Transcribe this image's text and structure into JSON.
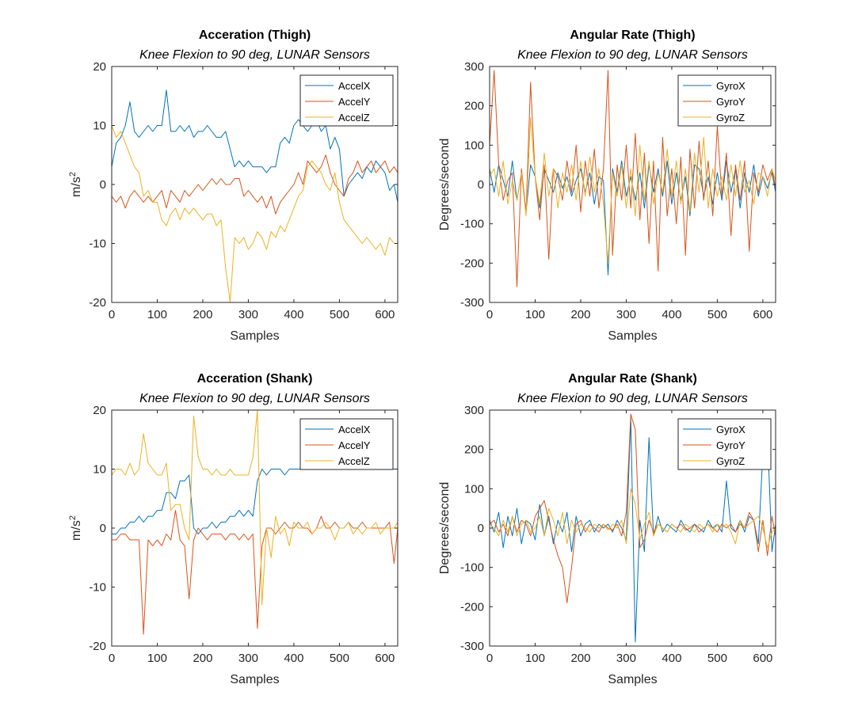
{
  "chart_data": [
    {
      "type": "line",
      "title": "Acceration (Thigh)",
      "subtitle": "Knee Flexion to 90 deg, LUNAR Sensors",
      "xlabel": "Samples",
      "ylabel_base": "m/s",
      "ylabel_sup": "2",
      "xlim": [
        0,
        628
      ],
      "ylim": [
        -20,
        20
      ],
      "xticks": [
        0,
        100,
        200,
        300,
        400,
        500,
        600
      ],
      "yticks": [
        -20,
        -10,
        0,
        10,
        20
      ],
      "legend_position": "top-right",
      "x": [
        0,
        10,
        20,
        30,
        40,
        50,
        60,
        70,
        80,
        90,
        100,
        110,
        120,
        130,
        140,
        150,
        160,
        170,
        180,
        190,
        200,
        210,
        220,
        230,
        240,
        250,
        260,
        270,
        280,
        290,
        300,
        310,
        320,
        330,
        340,
        350,
        360,
        370,
        380,
        390,
        400,
        410,
        420,
        430,
        440,
        450,
        460,
        470,
        480,
        490,
        500,
        510,
        520,
        530,
        540,
        550,
        560,
        570,
        580,
        590,
        600,
        610,
        620,
        628
      ],
      "series": [
        {
          "name": "AccelX",
          "color": "#0072BD",
          "values": [
            3,
            7,
            8,
            10,
            14,
            9,
            8,
            9,
            10,
            9,
            10,
            10,
            16,
            9,
            9,
            10,
            9,
            10,
            8,
            9,
            9,
            10,
            9,
            8,
            8,
            9,
            6,
            3,
            4,
            3,
            4,
            3,
            3,
            3,
            2,
            3,
            3,
            7,
            8,
            7,
            10,
            11,
            10,
            9,
            10,
            11,
            9,
            10,
            6,
            8,
            6,
            -2,
            0,
            1,
            2,
            1,
            3,
            2,
            4,
            3,
            2,
            -1,
            0,
            -3
          ]
        },
        {
          "name": "AccelY",
          "color": "#D95319",
          "values": [
            -2,
            -3,
            -2,
            -4,
            -2,
            -1,
            -2,
            -3,
            -2,
            -3,
            -2,
            -1,
            -4,
            -1,
            -2,
            -3,
            -1,
            -2,
            -1,
            0,
            -1,
            0,
            1,
            0,
            1,
            0,
            0,
            1,
            1,
            -2,
            -1,
            -2,
            -3,
            -2,
            -4,
            -2,
            -5,
            -3,
            -2,
            -1,
            0,
            2,
            0,
            4,
            3,
            2,
            3,
            5,
            2,
            0,
            -1,
            -2,
            1,
            2,
            4,
            2,
            3,
            4,
            2,
            3,
            4,
            2,
            3,
            2
          ]
        },
        {
          "name": "AccelZ",
          "color": "#EDB120",
          "values": [
            10,
            8,
            9,
            7,
            5,
            3,
            2,
            -2,
            -1,
            -3,
            -3,
            -6,
            -7,
            -5,
            -4,
            -6,
            -4,
            -5,
            -4,
            -5,
            -6,
            -5,
            -5,
            -7,
            -6,
            -14,
            -20,
            -9,
            -10,
            -9,
            -11,
            -10,
            -8,
            -9,
            -11,
            -8,
            -9,
            -7,
            -8,
            -6,
            -4,
            -2,
            -1,
            3,
            4,
            3,
            2,
            0,
            -1,
            2,
            -3,
            -6,
            -7,
            -8,
            -9,
            -10,
            -9,
            -10,
            -11,
            -10,
            -12,
            -9,
            -10,
            -10
          ]
        }
      ]
    },
    {
      "type": "line",
      "title": "Angular Rate (Thigh)",
      "subtitle": "Knee Flexion to 90 deg, LUNAR Sensors",
      "xlabel": "Samples",
      "ylabel_base": "Degrees/second",
      "ylabel_sup": "",
      "xlim": [
        0,
        628
      ],
      "ylim": [
        -300,
        300
      ],
      "xticks": [
        0,
        100,
        200,
        300,
        400,
        500,
        600
      ],
      "yticks": [
        -300,
        -200,
        -100,
        0,
        100,
        200,
        300
      ],
      "legend_position": "top-right",
      "x": [
        0,
        10,
        20,
        30,
        40,
        50,
        60,
        70,
        80,
        90,
        100,
        110,
        120,
        130,
        140,
        150,
        160,
        170,
        180,
        190,
        200,
        210,
        220,
        230,
        240,
        250,
        260,
        270,
        280,
        290,
        300,
        310,
        320,
        330,
        340,
        350,
        360,
        370,
        380,
        390,
        400,
        410,
        420,
        430,
        440,
        450,
        460,
        470,
        480,
        490,
        500,
        510,
        520,
        530,
        540,
        550,
        560,
        570,
        580,
        590,
        600,
        610,
        620,
        628
      ],
      "series": [
        {
          "name": "GyroX",
          "color": "#0072BD",
          "values": [
            40,
            -20,
            50,
            10,
            -30,
            60,
            -40,
            30,
            -70,
            50,
            20,
            -60,
            40,
            10,
            -20,
            30,
            -10,
            20,
            -30,
            10,
            40,
            -20,
            30,
            -50,
            20,
            10,
            -230,
            40,
            -20,
            60,
            -30,
            20,
            -40,
            30,
            -60,
            50,
            -20,
            40,
            -30,
            60,
            -50,
            30,
            -40,
            20,
            -80,
            50,
            40,
            -30,
            20,
            -50,
            30,
            -40,
            60,
            -20,
            40,
            -60,
            30,
            -20,
            50,
            -30,
            20,
            -10,
            30,
            -20
          ]
        },
        {
          "name": "GyroY",
          "color": "#D95319",
          "values": [
            100,
            290,
            50,
            -40,
            10,
            30,
            -260,
            40,
            -70,
            260,
            20,
            -90,
            50,
            -190,
            40,
            20,
            -40,
            60,
            -20,
            100,
            -70,
            60,
            -30,
            90,
            -60,
            40,
            290,
            -180,
            50,
            -40,
            100,
            -60,
            130,
            -90,
            80,
            -150,
            60,
            -220,
            120,
            -80,
            40,
            -100,
            70,
            -180,
            90,
            -60,
            110,
            -40,
            60,
            -80,
            150,
            -30,
            80,
            -130,
            50,
            -40,
            60,
            -170,
            30,
            -20,
            50,
            10,
            40,
            -10
          ]
        },
        {
          "name": "GyroZ",
          "color": "#EDB120",
          "values": [
            20,
            40,
            -30,
            60,
            -50,
            10,
            -40,
            30,
            -80,
            170,
            20,
            -50,
            80,
            -30,
            40,
            -60,
            30,
            -20,
            50,
            -40,
            60,
            -30,
            70,
            -20,
            40,
            -50,
            -200,
            30,
            -30,
            50,
            -60,
            40,
            -80,
            100,
            -40,
            60,
            -50,
            30,
            -20,
            90,
            -30,
            60,
            -50,
            40,
            -70,
            80,
            -20,
            120,
            -60,
            40,
            -30,
            20,
            -40,
            50,
            -30,
            60,
            -20,
            10,
            -50,
            30,
            20,
            -30,
            40,
            10
          ]
        }
      ]
    },
    {
      "type": "line",
      "title": "Acceration (Shank)",
      "subtitle": "Knee Flexion to 90 deg, LUNAR Sensors",
      "xlabel": "Samples",
      "ylabel_base": "m/s",
      "ylabel_sup": "2",
      "xlim": [
        0,
        628
      ],
      "ylim": [
        -20,
        20
      ],
      "xticks": [
        0,
        100,
        200,
        300,
        400,
        500,
        600
      ],
      "yticks": [
        -20,
        -10,
        0,
        10,
        20
      ],
      "legend_position": "top-right",
      "x": [
        0,
        10,
        20,
        30,
        40,
        50,
        60,
        70,
        80,
        90,
        100,
        110,
        120,
        130,
        140,
        150,
        160,
        170,
        180,
        190,
        200,
        210,
        220,
        230,
        240,
        250,
        260,
        270,
        280,
        290,
        300,
        310,
        320,
        330,
        340,
        350,
        360,
        370,
        380,
        390,
        400,
        410,
        420,
        430,
        440,
        450,
        460,
        470,
        480,
        490,
        500,
        510,
        520,
        530,
        540,
        550,
        560,
        570,
        580,
        590,
        600,
        610,
        620,
        628
      ],
      "series": [
        {
          "name": "AccelX",
          "color": "#0072BD",
          "values": [
            -1,
            -1,
            0,
            0,
            1,
            1,
            2,
            1,
            2,
            2,
            3,
            3,
            6,
            6,
            5,
            8,
            8,
            9,
            0,
            -1,
            0,
            0,
            1,
            0,
            1,
            1,
            2,
            2,
            3,
            2,
            3,
            2,
            8,
            10,
            9,
            10,
            10,
            10,
            9,
            10,
            10,
            10,
            10,
            10,
            10,
            10,
            10,
            10,
            10,
            10,
            10,
            10,
            10,
            10,
            10,
            10,
            10,
            10,
            10,
            10,
            10,
            10,
            10,
            10
          ]
        },
        {
          "name": "AccelY",
          "color": "#D95319",
          "values": [
            -2,
            -2,
            -1,
            -1,
            -2,
            -2,
            -2,
            -18,
            -2,
            -3,
            -2,
            -3,
            -1,
            -2,
            3,
            -2,
            -3,
            -12,
            -2,
            0,
            -1,
            -2,
            -1,
            -1,
            -1,
            -2,
            -1,
            -1,
            -2,
            -1,
            -2,
            -1,
            -17,
            -3,
            0,
            0,
            -1,
            0,
            1,
            0,
            0,
            1,
            0,
            0,
            -1,
            0,
            2,
            0,
            0,
            1,
            0,
            0,
            1,
            0,
            0,
            1,
            0,
            0,
            0,
            0,
            0,
            1,
            -6,
            0
          ]
        },
        {
          "name": "AccelZ",
          "color": "#EDB120",
          "values": [
            9,
            10,
            10,
            9,
            11,
            9,
            10,
            16,
            11,
            10,
            9,
            9,
            11,
            3,
            4,
            4,
            0,
            -2,
            19,
            12,
            10,
            10,
            9,
            10,
            9,
            9,
            10,
            9,
            9,
            9,
            9,
            12,
            20,
            -13,
            0,
            -5,
            2,
            -1,
            0,
            -3,
            1,
            0,
            0,
            1,
            -1,
            0,
            0,
            1,
            0,
            -2,
            0,
            0,
            1,
            -1,
            0,
            -1,
            0,
            0,
            1,
            -1,
            0,
            0,
            0,
            1
          ]
        }
      ]
    },
    {
      "type": "line",
      "title": "Angular Rate (Shank)",
      "subtitle": "Knee Flexion to 90 deg, LUNAR Sensors",
      "xlabel": "Samples",
      "ylabel_base": "Degrees/second",
      "ylabel_sup": "",
      "xlim": [
        0,
        628
      ],
      "ylim": [
        -300,
        300
      ],
      "xticks": [
        0,
        100,
        200,
        300,
        400,
        500,
        600
      ],
      "yticks": [
        -300,
        -200,
        -100,
        0,
        100,
        200,
        300
      ],
      "legend_position": "top-right",
      "x": [
        0,
        10,
        20,
        30,
        40,
        50,
        60,
        70,
        80,
        90,
        100,
        110,
        120,
        130,
        140,
        150,
        160,
        170,
        180,
        190,
        200,
        210,
        220,
        230,
        240,
        250,
        260,
        270,
        280,
        290,
        300,
        310,
        320,
        330,
        340,
        350,
        360,
        370,
        380,
        390,
        400,
        410,
        420,
        430,
        440,
        450,
        460,
        470,
        480,
        490,
        500,
        510,
        520,
        530,
        540,
        550,
        560,
        570,
        580,
        590,
        600,
        610,
        620,
        628
      ],
      "series": [
        {
          "name": "GyroX",
          "color": "#0072BD",
          "values": [
            20,
            -10,
            40,
            -50,
            30,
            -20,
            50,
            -40,
            20,
            10,
            -30,
            60,
            -20,
            30,
            -40,
            20,
            -10,
            40,
            -60,
            30,
            -20,
            10,
            20,
            -10,
            10,
            0,
            10,
            -10,
            20,
            0,
            -30,
            280,
            -290,
            20,
            -60,
            230,
            -20,
            30,
            -10,
            10,
            0,
            -10,
            20,
            0,
            -10,
            10,
            0,
            -10,
            20,
            0,
            10,
            -10,
            120,
            0,
            -10,
            20,
            -10,
            30,
            20,
            -40,
            190,
            240,
            -60,
            10
          ]
        },
        {
          "name": "GyroY",
          "color": "#D95319",
          "values": [
            10,
            20,
            -10,
            10,
            -20,
            30,
            -10,
            20,
            10,
            -20,
            30,
            50,
            70,
            20,
            -30,
            -70,
            -100,
            -190,
            -100,
            10,
            20,
            -10,
            10,
            0,
            -10,
            10,
            0,
            -5,
            10,
            -20,
            40,
            290,
            250,
            -50,
            -30,
            20,
            -10,
            10,
            0,
            -10,
            10,
            0,
            10,
            -5,
            0,
            10,
            -10,
            0,
            10,
            0,
            -10,
            10,
            0,
            10,
            -10,
            10,
            0,
            40,
            20,
            -60,
            20,
            -70,
            30,
            -20
          ]
        },
        {
          "name": "GyroZ",
          "color": "#EDB120",
          "values": [
            10,
            0,
            -20,
            20,
            -10,
            30,
            -20,
            10,
            20,
            -10,
            0,
            30,
            -20,
            50,
            20,
            -20,
            40,
            -40,
            20,
            -10,
            10,
            0,
            -10,
            10,
            0,
            10,
            -5,
            10,
            0,
            20,
            -40,
            100,
            60,
            -30,
            10,
            40,
            -20,
            10,
            0,
            -10,
            10,
            0,
            -10,
            10,
            0,
            -10,
            10,
            0,
            10,
            -10,
            10,
            0,
            10,
            -10,
            -40,
            20,
            0,
            10,
            20,
            30,
            0,
            -50,
            -10,
            0
          ]
        }
      ]
    }
  ]
}
